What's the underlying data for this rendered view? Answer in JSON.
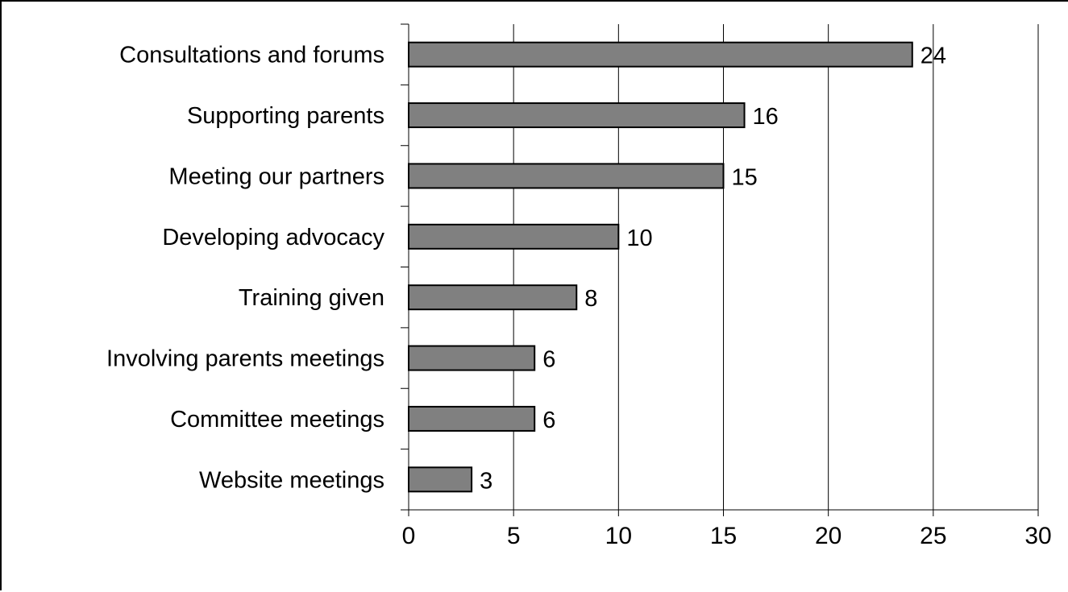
{
  "chart_data": {
    "type": "bar",
    "orientation": "horizontal",
    "categories": [
      "Consultations and forums",
      "Supporting parents",
      "Meeting our partners",
      "Developing advocacy",
      "Training given",
      "Involving parents meetings",
      "Committee meetings",
      "Website meetings"
    ],
    "values": [
      24,
      16,
      15,
      10,
      8,
      6,
      6,
      3
    ],
    "data_labels": [
      "24",
      "16",
      "15",
      "10",
      "8",
      "6",
      "6",
      "3"
    ],
    "xlim": [
      0,
      30
    ],
    "xticks": [
      0,
      5,
      10,
      15,
      20,
      25,
      30
    ],
    "xtick_labels": [
      "0",
      "5",
      "10",
      "15",
      "20",
      "25",
      "30"
    ],
    "grid": "vertical",
    "legend": "none",
    "colors": {
      "bar_fill": "#808080",
      "bar_stroke": "#000000",
      "grid": "#000000"
    }
  }
}
